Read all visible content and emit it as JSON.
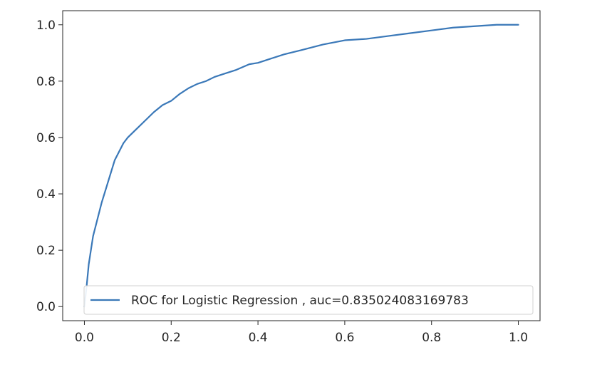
{
  "chart_data": {
    "type": "line",
    "title": "",
    "xlabel": "",
    "ylabel": "",
    "xlim": [
      -0.05,
      1.05
    ],
    "ylim": [
      -0.05,
      1.05
    ],
    "xticks": [
      0.0,
      0.2,
      0.4,
      0.6,
      0.8,
      1.0
    ],
    "xtick_labels": [
      "0.0",
      "0.2",
      "0.4",
      "0.6",
      "0.8",
      "1.0"
    ],
    "yticks": [
      0.0,
      0.2,
      0.4,
      0.6,
      0.8,
      1.0
    ],
    "ytick_labels": [
      "0.0",
      "0.2",
      "0.4",
      "0.6",
      "0.8",
      "1.0"
    ],
    "grid": false,
    "legend": {
      "position": "lower-right"
    },
    "series": [
      {
        "name": "ROC for Logistic Regression , auc=0.835024083169783",
        "color": "#3a78b8",
        "x": [
          0.0,
          0.005,
          0.01,
          0.015,
          0.02,
          0.03,
          0.04,
          0.05,
          0.06,
          0.07,
          0.08,
          0.09,
          0.1,
          0.12,
          0.14,
          0.16,
          0.18,
          0.2,
          0.22,
          0.24,
          0.26,
          0.28,
          0.3,
          0.32,
          0.35,
          0.38,
          0.4,
          0.43,
          0.46,
          0.5,
          0.55,
          0.6,
          0.65,
          0.7,
          0.75,
          0.8,
          0.85,
          0.9,
          0.95,
          1.0
        ],
        "y": [
          0.0,
          0.07,
          0.15,
          0.2,
          0.25,
          0.31,
          0.37,
          0.42,
          0.47,
          0.52,
          0.55,
          0.58,
          0.6,
          0.63,
          0.66,
          0.69,
          0.715,
          0.73,
          0.755,
          0.775,
          0.79,
          0.8,
          0.815,
          0.825,
          0.84,
          0.86,
          0.865,
          0.88,
          0.895,
          0.91,
          0.93,
          0.945,
          0.95,
          0.96,
          0.97,
          0.98,
          0.99,
          0.995,
          1.0,
          1.0
        ]
      }
    ]
  }
}
